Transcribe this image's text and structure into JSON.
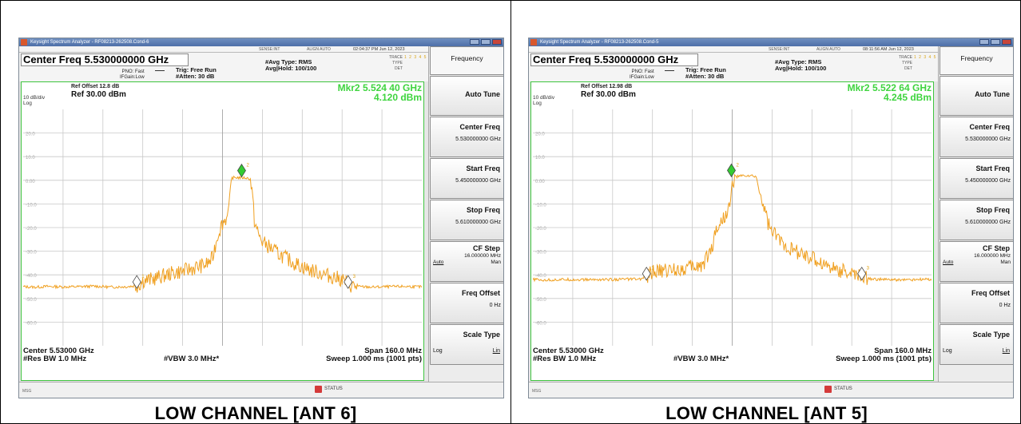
{
  "panels": [
    {
      "caption": "LOW CHANNEL [ANT 6]",
      "window_title": "Keysight Spectrum Analyzer - RF08213-262508.Cond-6",
      "timestamp": "02:04:37 PM Jun 12, 2023",
      "menu_center_msg": "ALIGN AUTO",
      "menu_left_msg": "SENSE:INT",
      "center_freq_title": "Center Freq 5.530000000 GHz",
      "pno": "PNO: Fast",
      "ifgain": "IFGain:Low",
      "trig": "Trig: Free Run",
      "atten": "#Atten: 30 dB",
      "avg_type": "#Avg Type: RMS",
      "avg_hold": "Avg|Hold: 100/100",
      "trace_labels": [
        "TRACE",
        "TYPE",
        "DET"
      ],
      "trace_nums": "1 2 3 4 5 6",
      "ref_offset": "Ref Offset 12.8 dB",
      "ref_level": "Ref 30.00 dBm",
      "db_div": "10 dB/div",
      "log": "Log",
      "marker_freq": "Mkr2 5.524 40 GHz",
      "marker_amp": "4.120 dBm",
      "center": "Center 5.53000 GHz",
      "res_bw": "#Res BW 1.0 MHz",
      "vbw": "#VBW 3.0 MHz*",
      "span": "Span 160.0 MHz",
      "sweep": "Sweep  1.000 ms (1001 pts)",
      "msg": "MSG",
      "status": "STATUS",
      "y_ticks": [
        "20.0",
        "10.0",
        "0.00",
        "-10.0",
        "-20.0",
        "-30.0",
        "-40.0",
        "-50.0",
        "-60.0"
      ],
      "trace_points": [
        [
          0,
          -45
        ],
        [
          3,
          -45.2
        ],
        [
          6,
          -44.9
        ],
        [
          10,
          -45.1
        ],
        [
          14,
          -45
        ],
        [
          18,
          -44.8
        ],
        [
          22,
          -45.2
        ],
        [
          26,
          -45
        ],
        [
          29,
          -44.5
        ],
        [
          30,
          -42.5
        ],
        [
          32,
          -42
        ],
        [
          34,
          -41
        ],
        [
          36,
          -40
        ],
        [
          38,
          -39
        ],
        [
          40,
          -38.5
        ],
        [
          42,
          -37.5
        ],
        [
          44,
          -36.5
        ],
        [
          46,
          -35.5
        ],
        [
          47,
          -34
        ],
        [
          47.5,
          -33
        ],
        [
          48,
          -29
        ],
        [
          49,
          -22
        ],
        [
          50,
          -18
        ],
        [
          51,
          -16
        ],
        [
          51.5,
          -12
        ],
        [
          52,
          -3
        ],
        [
          52.3,
          1
        ],
        [
          53,
          1.2
        ],
        [
          55,
          1.1
        ],
        [
          56,
          1
        ],
        [
          57,
          0.5
        ],
        [
          57.5,
          -6
        ],
        [
          58,
          -17
        ],
        [
          59,
          -23
        ],
        [
          60,
          -26
        ],
        [
          62,
          -28.5
        ],
        [
          64,
          -31
        ],
        [
          66,
          -33
        ],
        [
          68,
          -35
        ],
        [
          70,
          -36.5
        ],
        [
          72,
          -38
        ],
        [
          74,
          -39
        ],
        [
          76,
          -40
        ],
        [
          78,
          -41
        ],
        [
          80,
          -42
        ],
        [
          81,
          -43
        ],
        [
          82,
          -44.5
        ],
        [
          84,
          -45
        ],
        [
          88,
          -45.2
        ],
        [
          92,
          -45
        ],
        [
          96,
          -44.9
        ],
        [
          100,
          -45.1
        ]
      ],
      "markers": [
        {
          "label": "1",
          "x": 28.5,
          "y": -43,
          "color": "#ffffff"
        },
        {
          "label": "2",
          "x": 54.8,
          "y": 4.1,
          "color": "#33cc33"
        },
        {
          "label": "3",
          "x": 81.5,
          "y": -43,
          "color": "#ffffff"
        }
      ],
      "softkeys": {
        "title": "Frequency",
        "auto_tune": "Auto Tune",
        "center_freq_label": "Center Freq",
        "center_freq_value": "5.530000000 GHz",
        "start_freq_label": "Start Freq",
        "start_freq_value": "5.450000000 GHz",
        "stop_freq_label": "Stop Freq",
        "stop_freq_value": "5.610000000 GHz",
        "cf_step_label": "CF Step",
        "cf_step_value": "16.000000 MHz",
        "cf_step_auto": "Auto",
        "cf_step_man": "Man",
        "freq_offset_label": "Freq Offset",
        "freq_offset_value": "0 Hz",
        "scale_type_label": "Scale Type",
        "scale_log": "Log",
        "scale_lin": "Lin"
      }
    },
    {
      "caption": "LOW CHANNEL [ANT 5]",
      "window_title": "Keysight Spectrum Analyzer - RF08213-262508.Cond-5",
      "timestamp": "08:11:56 AM Jun 12, 2023",
      "menu_center_msg": "ALIGN AUTO",
      "menu_left_msg": "SENSE:INT",
      "center_freq_title": "Center Freq 5.530000000 GHz",
      "pno": "PNO: Fast",
      "ifgain": "IFGain:Low",
      "trig": "Trig: Free Run",
      "atten": "#Atten: 30 dB",
      "avg_type": "#Avg Type: RMS",
      "avg_hold": "Avg|Hold: 100/100",
      "trace_labels": [
        "TRACE",
        "TYPE",
        "DET"
      ],
      "trace_nums": "1 2 3 4 5 6",
      "ref_offset": "Ref Offset 12.98 dB",
      "ref_level": "Ref 30.00 dBm",
      "db_div": "10 dB/div",
      "log": "Log",
      "marker_freq": "Mkr2 5.522 64 GHz",
      "marker_amp": "4.245 dBm",
      "center": "Center 5.53000 GHz",
      "res_bw": "#Res BW 1.0 MHz",
      "vbw": "#VBW 3.0 MHz*",
      "span": "Span 160.0 MHz",
      "sweep": "Sweep  1.000 ms (1001 pts)",
      "msg": "MSG",
      "status": "STATUS",
      "y_ticks": [
        "20.0",
        "10.0",
        "0.00",
        "-10.0",
        "-20.0",
        "-30.0",
        "-40.0",
        "-50.0",
        "-60.0"
      ],
      "trace_points": [
        [
          0,
          -42
        ],
        [
          4,
          -42.2
        ],
        [
          8,
          -42
        ],
        [
          12,
          -42.1
        ],
        [
          16,
          -42
        ],
        [
          20,
          -42
        ],
        [
          24,
          -41.8
        ],
        [
          27,
          -41.9
        ],
        [
          28,
          -41
        ],
        [
          30,
          -39
        ],
        [
          32,
          -38.5
        ],
        [
          34,
          -38
        ],
        [
          36,
          -37.5
        ],
        [
          38,
          -37
        ],
        [
          40,
          -36.5
        ],
        [
          42,
          -36
        ],
        [
          43,
          -34.5
        ],
        [
          44,
          -31
        ],
        [
          45,
          -28
        ],
        [
          46,
          -20
        ],
        [
          47,
          -18.5
        ],
        [
          48,
          -15
        ],
        [
          49,
          -12.5
        ],
        [
          49.5,
          -10
        ],
        [
          50,
          -2
        ],
        [
          51,
          1.5
        ],
        [
          53,
          2
        ],
        [
          55,
          1.8
        ],
        [
          56,
          1.5
        ],
        [
          57,
          -6
        ],
        [
          58,
          -11
        ],
        [
          59,
          -18
        ],
        [
          60,
          -22
        ],
        [
          62,
          -25
        ],
        [
          64,
          -28
        ],
        [
          66,
          -30
        ],
        [
          68,
          -31.5
        ],
        [
          70,
          -33
        ],
        [
          72,
          -34.5
        ],
        [
          74,
          -36
        ],
        [
          76,
          -37.5
        ],
        [
          78,
          -38.5
        ],
        [
          80,
          -39.5
        ],
        [
          82,
          -40.5
        ],
        [
          84,
          -41.5
        ],
        [
          85,
          -41.8
        ],
        [
          88,
          -42
        ],
        [
          92,
          -42.1
        ],
        [
          96,
          -42
        ],
        [
          100,
          -42
        ]
      ],
      "markers": [
        {
          "label": "1",
          "x": 28.5,
          "y": -39.5,
          "color": "#ffffff"
        },
        {
          "label": "2",
          "x": 49.8,
          "y": 4.2,
          "color": "#33cc33"
        },
        {
          "label": "3",
          "x": 82.5,
          "y": -39.5,
          "color": "#ffffff"
        }
      ],
      "softkeys": {
        "title": "Frequency",
        "auto_tune": "Auto Tune",
        "center_freq_label": "Center Freq",
        "center_freq_value": "5.530000000 GHz",
        "start_freq_label": "Start Freq",
        "start_freq_value": "5.450000000 GHz",
        "stop_freq_label": "Stop Freq",
        "stop_freq_value": "5.610000000 GHz",
        "cf_step_label": "CF Step",
        "cf_step_value": "16.000000 MHz",
        "cf_step_auto": "Auto",
        "cf_step_man": "Man",
        "freq_offset_label": "Freq Offset",
        "freq_offset_value": "0 Hz",
        "scale_type_label": "Scale Type",
        "scale_log": "Log",
        "scale_lin": "Lin"
      }
    }
  ],
  "colors": {
    "trace": "#f0a020",
    "graticule_border": "#3ec43e",
    "marker_text": "#3ed43e",
    "grid": "#c8c8c8"
  }
}
